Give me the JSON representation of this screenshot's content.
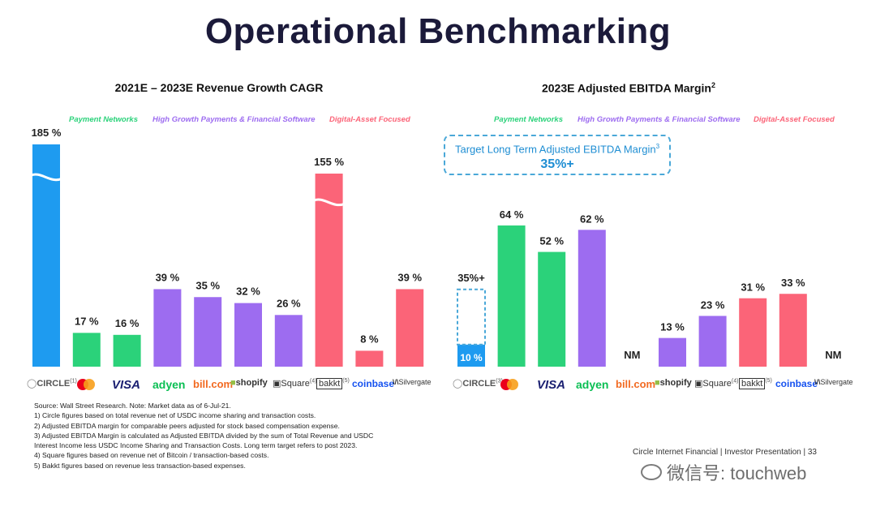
{
  "page_title": "Operational Benchmarking",
  "legend": {
    "payment": "Payment Networks",
    "growth": "High Growth Payments & Financial Software",
    "digital": "Digital-Asset Focused"
  },
  "colors": {
    "circle": "#1e9bf0",
    "payment": "#2bd27a",
    "growth": "#9d6cf0",
    "digital": "#fb6478"
  },
  "target": {
    "text": "Target Long Term Adjusted EBITDA Margin",
    "sup": "3",
    "value": "35%+"
  },
  "logos": {
    "circle": "CIRCLE",
    "visa": "VISA",
    "adyen": "adyen",
    "bill": "bill.com",
    "shopify": "shopify",
    "square": "Square",
    "bakkt": "bakkt",
    "coinbase": "coinbase",
    "silvergate": "Silvergate"
  },
  "chart_data": [
    {
      "type": "bar",
      "title": "2021E – 2023E Revenue Growth CAGR",
      "categories": [
        "Circle",
        "Mastercard",
        "Visa",
        "Adyen",
        "Bill.com",
        "Shopify",
        "Square",
        "Bakkt",
        "Coinbase",
        "Silvergate"
      ],
      "values": [
        185,
        17,
        16,
        39,
        35,
        32,
        26,
        155,
        8,
        39
      ],
      "labels": [
        "185 %",
        "17 %",
        "16 %",
        "39 %",
        "35 %",
        "32 %",
        "26 %",
        "155 %",
        "8 %",
        "39 %"
      ],
      "groups": [
        "circle",
        "payment",
        "payment",
        "growth",
        "growth",
        "growth",
        "growth",
        "digital",
        "digital",
        "digital"
      ],
      "logo_sups": [
        "(1)",
        "",
        "",
        "",
        "",
        "",
        "(4)",
        "(5)",
        "",
        ""
      ],
      "axis_break": true
    },
    {
      "type": "bar",
      "title": "2023E Adjusted EBITDA Margin",
      "title_sup": "2",
      "categories": [
        "Circle",
        "Mastercard",
        "Visa",
        "Adyen",
        "Bill.com",
        "Shopify",
        "Square",
        "Bakkt",
        "Coinbase",
        "Silvergate"
      ],
      "values": [
        10,
        64,
        52,
        62,
        null,
        13,
        23,
        31,
        33,
        null
      ],
      "labels": [
        "10 %",
        "64 %",
        "52 %",
        "62 %",
        "NM",
        "13 %",
        "23 %",
        "31 %",
        "33 %",
        "NM"
      ],
      "groups": [
        "circle",
        "payment",
        "payment",
        "growth",
        "growth",
        "growth",
        "growth",
        "digital",
        "digital",
        "digital"
      ],
      "logo_sups": [
        "(3)",
        "",
        "",
        "",
        "",
        "",
        "(4)",
        "(5)",
        "",
        ""
      ],
      "circle_target": 35,
      "circle_target_label": "35%+"
    }
  ],
  "footnotes": [
    "Source: Wall Street Research. Note: Market data as of 6-Jul-21.",
    "1) Circle figures based on total revenue net of USDC income sharing and transaction costs.",
    "2) Adjusted EBITDA margin for comparable peers adjusted for stock based compensation expense.",
    "3) Adjusted EBITDA Margin is calculated as Adjusted EBITDA divided by the sum of Total Revenue and USDC",
    "Interest Income less USDC Income Sharing and Transaction Costs. Long term target refers to post 2023.",
    "4) Square figures based on revenue net of Bitcoin / transaction-based costs.",
    "5) Bakkt figures based on revenue less transaction-based expenses."
  ],
  "footer": "Circle Internet Financial | Investor Presentation | 33",
  "watermark": "微信号: touchweb"
}
